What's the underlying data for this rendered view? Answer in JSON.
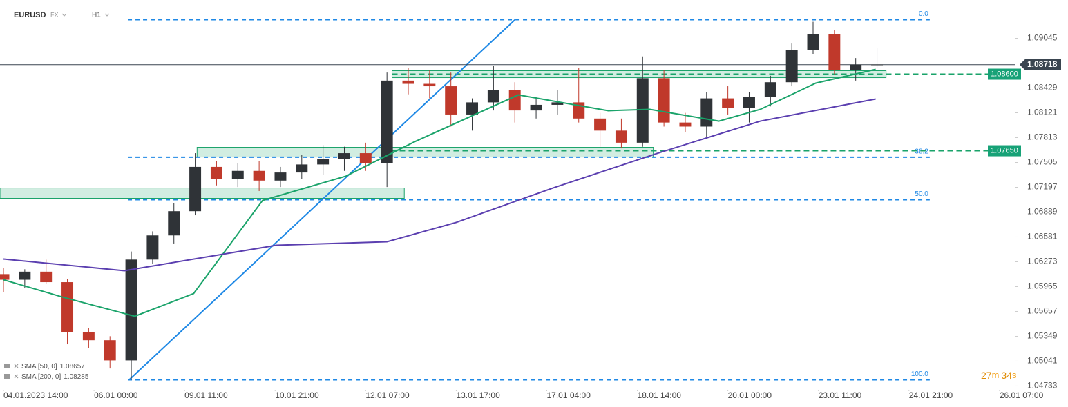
{
  "header": {
    "symbol": "EURUSD",
    "market": "FX",
    "interval": "H1"
  },
  "chart_data": {
    "type": "candlestick",
    "xlim": [
      -1.3,
      380
    ],
    "ylim": [
      1.046,
      1.0952
    ],
    "xticks": [
      {
        "value": 0,
        "label": "04.01.2023 14:00"
      },
      {
        "value": 34,
        "label": "06.01 00:00"
      },
      {
        "value": 68,
        "label": "09.01 11:00"
      },
      {
        "value": 102,
        "label": "10.01 21:00"
      },
      {
        "value": 136,
        "label": "12.01 07:00"
      },
      {
        "value": 170,
        "label": "13.01 17:00"
      },
      {
        "value": 204,
        "label": "17.01 04:00"
      },
      {
        "value": 238,
        "label": "18.01 14:00"
      },
      {
        "value": 272,
        "label": "20.01 00:00"
      },
      {
        "value": 306,
        "label": "23.01 11:00"
      },
      {
        "value": 340,
        "label": "24.01 21:00"
      },
      {
        "value": 374,
        "label": "26.01 07:00"
      }
    ],
    "yticks": [
      1.09045,
      1.08429,
      1.08121,
      1.07813,
      1.07505,
      1.07197,
      1.06889,
      1.06581,
      1.06273,
      1.05965,
      1.05657,
      1.05349,
      1.05041,
      1.04733
    ],
    "up_color": "#2f3337",
    "down_color": "#c0392b",
    "x": [
      0,
      8,
      16,
      24,
      32,
      40,
      48,
      56,
      64,
      72,
      80,
      88,
      96,
      104,
      112,
      120,
      128,
      136,
      144,
      152,
      160,
      168,
      176,
      184,
      192,
      200,
      208,
      216,
      224,
      232,
      240,
      248,
      256,
      264,
      272,
      280,
      288,
      296,
      304,
      312,
      320,
      328
    ],
    "open": [
      1.0612,
      1.0605,
      1.0615,
      1.0602,
      1.054,
      1.053,
      1.0505,
      1.063,
      1.066,
      1.069,
      1.0745,
      1.073,
      1.074,
      1.0728,
      1.0738,
      1.0748,
      1.0755,
      1.0762,
      1.075,
      1.0852,
      1.0848,
      1.0845,
      1.081,
      1.0825,
      1.084,
      1.0815,
      1.0822,
      1.0825,
      1.0805,
      1.079,
      1.0775,
      1.0855,
      1.08,
      1.0795,
      1.083,
      1.0818,
      1.0832,
      1.085,
      1.089,
      1.091,
      1.0865,
      1.0872
    ],
    "high": [
      1.062,
      1.0618,
      1.063,
      1.0606,
      1.0545,
      1.0535,
      1.064,
      1.0665,
      1.07,
      1.0762,
      1.0752,
      1.075,
      1.0752,
      1.0745,
      1.076,
      1.0772,
      1.077,
      1.0775,
      1.0862,
      1.0868,
      1.0865,
      1.0862,
      1.083,
      1.087,
      1.085,
      1.0832,
      1.084,
      1.0868,
      1.0812,
      1.0805,
      1.0882,
      1.0865,
      1.0812,
      1.0838,
      1.0845,
      1.0838,
      1.0858,
      1.0898,
      1.0925,
      1.0915,
      1.088,
      1.0893
    ],
    "low": [
      1.059,
      1.0595,
      1.06,
      1.0525,
      1.052,
      1.0495,
      1.0481,
      1.0625,
      1.065,
      1.0685,
      1.0722,
      1.072,
      1.0715,
      1.072,
      1.073,
      1.0735,
      1.074,
      1.074,
      1.072,
      1.0835,
      1.083,
      1.0795,
      1.079,
      1.0815,
      1.08,
      1.0805,
      1.081,
      1.08,
      1.077,
      1.0768,
      1.077,
      1.0795,
      1.0788,
      1.0782,
      1.081,
      1.08,
      1.082,
      1.0845,
      1.0885,
      1.086,
      1.0852,
      1.0868
    ],
    "close": [
      1.0605,
      1.0615,
      1.0602,
      1.054,
      1.053,
      1.0505,
      1.063,
      1.066,
      1.069,
      1.0745,
      1.073,
      1.074,
      1.0728,
      1.0738,
      1.0748,
      1.0755,
      1.0762,
      1.075,
      1.0852,
      1.0848,
      1.0845,
      1.081,
      1.0825,
      1.084,
      1.0815,
      1.0822,
      1.0825,
      1.0805,
      1.079,
      1.0775,
      1.0855,
      1.08,
      1.0795,
      1.083,
      1.0818,
      1.0832,
      1.085,
      1.089,
      1.091,
      1.0865,
      1.0872,
      1.0872
    ],
    "series": [
      {
        "name": "SMA [50, 0]",
        "last": 1.08657,
        "color": "#1aa36a",
        "x": [
          0,
          22.1,
          49.3,
          71.4,
          97.3,
          128.5,
          154.4,
          193.3,
          227.1,
          242.7,
          268.6,
          284.2,
          305,
          327.5
        ],
        "values": [
          1.0605,
          1.05836,
          1.05597,
          1.05879,
          1.07034,
          1.07334,
          1.07762,
          1.08343,
          1.08147,
          1.08164,
          1.08018,
          1.08164,
          1.08489,
          1.0866
        ]
      },
      {
        "name": "SMA [200, 0]",
        "last": 1.08285,
        "color": "#5b3fb0",
        "x": [
          0,
          45.4,
          102.5,
          144,
          170,
          206.3,
          245.3,
          284.2,
          327.5
        ],
        "values": [
          1.06307,
          1.06162,
          1.06478,
          1.06521,
          1.06761,
          1.07188,
          1.07616,
          1.08018,
          1.08292
        ]
      }
    ],
    "zones": [
      {
        "x": [
          -1.3,
          150.5
        ],
        "y": [
          1.0706,
          1.07188
        ]
      },
      {
        "x": [
          72.7,
          244
        ],
        "y": [
          1.07573,
          1.07693
        ]
      },
      {
        "x": [
          145.9,
          331.4
        ],
        "y": [
          1.08557,
          1.08643
        ]
      }
    ],
    "trendline": {
      "x": [
        47.2,
        192.1
      ],
      "y": [
        1.0481,
        1.09276
      ]
    },
    "fib_range_x": [
      46.7,
      347.8
    ],
    "fib_levels": [
      {
        "value": 1.09276,
        "label": "0.0"
      },
      {
        "value": 1.0757,
        "label": "38.2"
      },
      {
        "value": 1.07043,
        "label": "50.0"
      },
      {
        "value": 1.0481,
        "label": "100.0"
      }
    ],
    "levels": [
      {
        "value": 1.086,
        "label": "1.08600",
        "x_start": 145.9
      },
      {
        "value": 1.0765,
        "label": "1.07650",
        "x_start": 142
      }
    ],
    "last_price": 1.08718,
    "countdown": [
      "27",
      "m",
      "34",
      "s"
    ]
  }
}
